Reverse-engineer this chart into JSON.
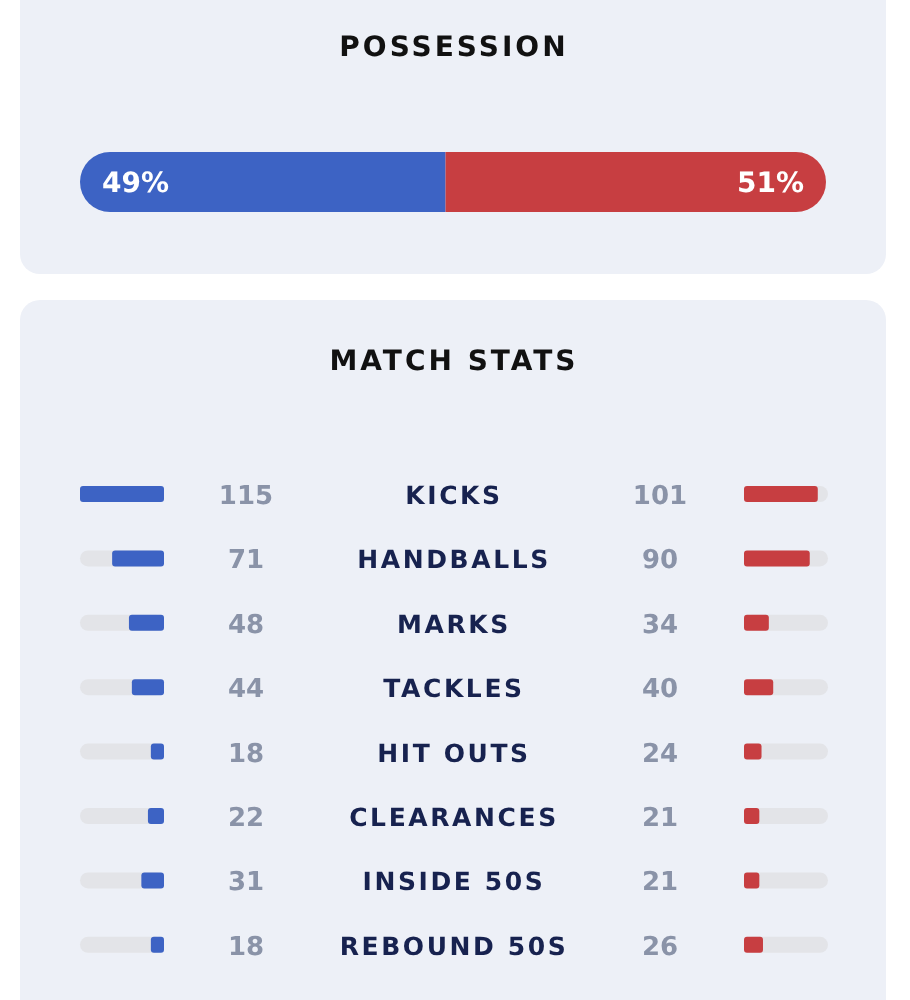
{
  "chart_data": [
    {
      "type": "bar",
      "title": "POSSESSION",
      "orientation": "horizontal",
      "stacked": true,
      "categories": [
        null
      ],
      "series": [
        {
          "color": "#3d63c4",
          "values": [
            49
          ],
          "value_labels": [
            "49%"
          ]
        },
        {
          "color": "#c73e41",
          "values": [
            51
          ],
          "value_labels": [
            "51%"
          ]
        }
      ]
    },
    {
      "type": "bar",
      "title": "MATCH STATS",
      "orientation": "horizontal",
      "categories": [
        "KICKS",
        "HANDBALLS",
        "MARKS",
        "TACKLES",
        "HIT OUTS",
        "CLEARANCES",
        "INSIDE 50S",
        "REBOUND 50S"
      ],
      "data_labels": true,
      "series": [
        {
          "color": "#3d63c4",
          "values": [
            115,
            71,
            48,
            44,
            18,
            22,
            31,
            18
          ]
        }
      ]
    },
    {
      "type": "bar",
      "orientation": "horizontal",
      "categories": [
        null,
        null,
        null,
        null,
        null,
        null,
        null,
        null
      ],
      "data_labels": true,
      "series": [
        {
          "color": "#c73e41",
          "values": [
            101,
            90,
            34,
            40,
            24,
            21,
            21,
            26
          ]
        }
      ]
    }
  ]
}
